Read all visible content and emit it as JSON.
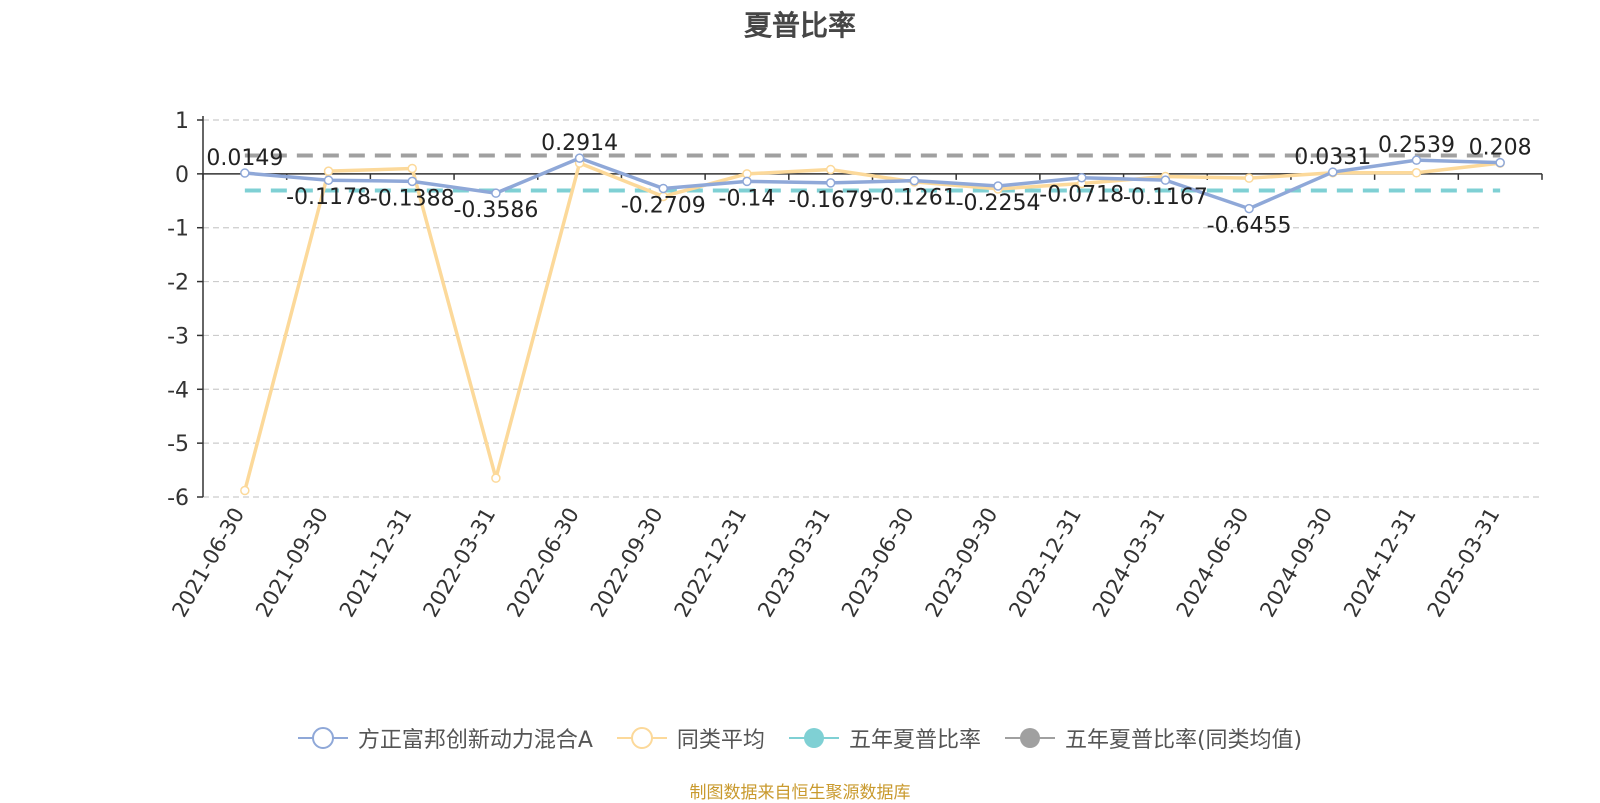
{
  "chart_data": {
    "type": "line",
    "title": "夏普比率",
    "categories": [
      "2021-06-30",
      "2021-09-30",
      "2021-12-31",
      "2022-03-31",
      "2022-06-30",
      "2022-09-30",
      "2022-12-31",
      "2023-03-31",
      "2023-06-30",
      "2023-09-30",
      "2023-12-31",
      "2024-03-31",
      "2024-06-30",
      "2024-09-30",
      "2024-12-31",
      "2025-03-31"
    ],
    "ylim": [
      -6,
      1
    ],
    "yticks": [
      1,
      0,
      -1,
      -2,
      -3,
      -4,
      -5,
      -6
    ],
    "grid": true,
    "legend_position": "bottom",
    "series": [
      {
        "name": "方正富邦创新动力混合A",
        "color": "#8fa8d8",
        "values": [
          0.0149,
          -0.1178,
          -0.1388,
          -0.3586,
          0.2914,
          -0.2709,
          -0.14,
          -0.1679,
          -0.1261,
          -0.2254,
          -0.0718,
          -0.1167,
          -0.6455,
          0.0331,
          0.2539,
          0.208
        ],
        "labels": [
          "0.0149",
          "-0.1178",
          "-0.1388",
          "-0.3586",
          "0.2914",
          "-0.2709",
          "-0.14",
          "-0.1679",
          "-0.1261",
          "-0.2254",
          "-0.0718",
          "-0.1167",
          "-0.6455",
          "0.0331",
          "0.2539",
          "0.208"
        ]
      },
      {
        "name": "同类平均",
        "color": "#fcd99a",
        "values": [
          -5.88,
          0.05,
          0.1,
          -5.65,
          0.2,
          -0.42,
          0.0,
          0.08,
          -0.15,
          -0.28,
          -0.18,
          -0.05,
          -0.08,
          0.02,
          0.02,
          0.2
        ]
      }
    ],
    "reference_lines": [
      {
        "name": "五年夏普比率",
        "color": "#7fd0d4",
        "value": -0.31
      },
      {
        "name": "五年夏普比率(同类均值)",
        "color": "#a0a0a0",
        "value": 0.34
      }
    ]
  },
  "legend": [
    {
      "label": "方正富邦创新动力混合A",
      "color": "#8fa8d8",
      "style": "hollow"
    },
    {
      "label": "同类平均",
      "color": "#fcd99a",
      "style": "hollow"
    },
    {
      "label": "五年夏普比率",
      "color": "#7fd0d4",
      "style": "filled"
    },
    {
      "label": "五年夏普比率(同类均值)",
      "color": "#a0a0a0",
      "style": "filled"
    }
  ],
  "source_text": "制图数据来自恒生聚源数据库"
}
